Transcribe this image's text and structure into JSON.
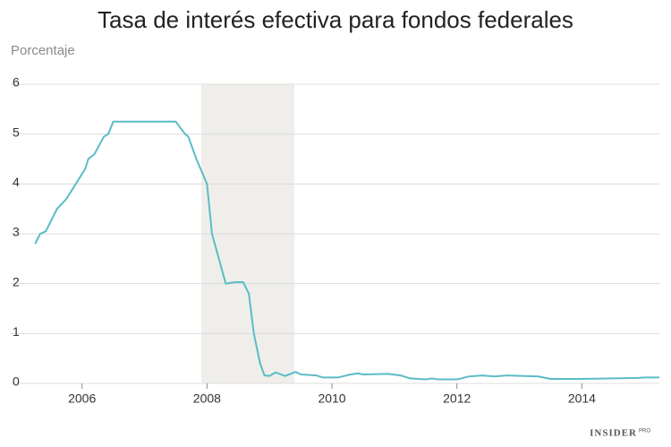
{
  "chart_data": {
    "type": "line",
    "title": "Tasa de interés efectiva para fondos federales",
    "y_label": "Porcentaje",
    "logo": "INSIDER",
    "logo_sub": "PRO",
    "x": [
      2005.25,
      2005.33,
      2005.42,
      2005.6,
      2005.75,
      2005.9,
      2006.05,
      2006.1,
      2006.2,
      2006.35,
      2006.42,
      2006.5,
      2007.5,
      2007.65,
      2007.7,
      2007.83,
      2008.0,
      2008.08,
      2008.3,
      2008.45,
      2008.58,
      2008.67,
      2008.75,
      2008.85,
      2008.92,
      2009.0,
      2009.1,
      2009.25,
      2009.42,
      2009.5,
      2009.75,
      2009.85,
      2010.1,
      2010.3,
      2010.42,
      2010.5,
      2010.9,
      2011.1,
      2011.25,
      2011.5,
      2011.6,
      2011.7,
      2012.0,
      2012.2,
      2012.4,
      2012.6,
      2012.8,
      2013.3,
      2013.5,
      2014.0,
      2014.9,
      2015.0,
      2015.24
    ],
    "values": [
      2.8,
      3.0,
      3.05,
      3.5,
      3.7,
      4.0,
      4.3,
      4.5,
      4.6,
      4.95,
      5.0,
      5.25,
      5.25,
      5.0,
      4.95,
      4.5,
      4.0,
      3.0,
      2.0,
      2.03,
      2.03,
      1.8,
      1.0,
      0.4,
      0.16,
      0.15,
      0.22,
      0.15,
      0.23,
      0.18,
      0.16,
      0.12,
      0.12,
      0.18,
      0.2,
      0.18,
      0.19,
      0.16,
      0.1,
      0.08,
      0.1,
      0.08,
      0.08,
      0.14,
      0.16,
      0.14,
      0.16,
      0.14,
      0.09,
      0.09,
      0.11,
      0.12,
      0.12
    ],
    "color": "#5bbcc6",
    "shaded_range": [
      2007.91,
      2009.4
    ],
    "shade_color": "#efeeeb",
    "xlim": [
      2005.26,
      2015.24
    ],
    "xticks": [
      2006,
      2008,
      2010,
      2012,
      2014
    ],
    "ylim": [
      0,
      6
    ],
    "yticks": [
      0,
      1,
      2,
      3,
      4,
      5,
      6
    ],
    "grid": true
  }
}
